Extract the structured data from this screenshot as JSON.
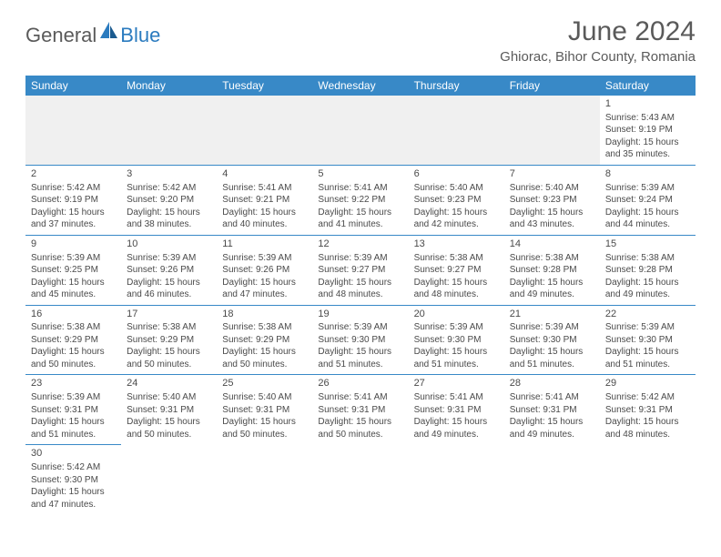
{
  "logo": {
    "general": "General",
    "blue": "Blue"
  },
  "title": "June 2024",
  "location": "Ghiorac, Bihor County, Romania",
  "dayHeaders": [
    "Sunday",
    "Monday",
    "Tuesday",
    "Wednesday",
    "Thursday",
    "Friday",
    "Saturday"
  ],
  "colors": {
    "headerBg": "#3889c7",
    "headerText": "#ffffff",
    "border": "#3889c7",
    "logoBlue": "#2b7bbf",
    "textGray": "#5a5a5a"
  },
  "grid": [
    [
      null,
      null,
      null,
      null,
      null,
      null,
      {
        "n": "1",
        "sr": "Sunrise: 5:43 AM",
        "ss": "Sunset: 9:19 PM",
        "d1": "Daylight: 15 hours",
        "d2": "and 35 minutes."
      }
    ],
    [
      {
        "n": "2",
        "sr": "Sunrise: 5:42 AM",
        "ss": "Sunset: 9:19 PM",
        "d1": "Daylight: 15 hours",
        "d2": "and 37 minutes."
      },
      {
        "n": "3",
        "sr": "Sunrise: 5:42 AM",
        "ss": "Sunset: 9:20 PM",
        "d1": "Daylight: 15 hours",
        "d2": "and 38 minutes."
      },
      {
        "n": "4",
        "sr": "Sunrise: 5:41 AM",
        "ss": "Sunset: 9:21 PM",
        "d1": "Daylight: 15 hours",
        "d2": "and 40 minutes."
      },
      {
        "n": "5",
        "sr": "Sunrise: 5:41 AM",
        "ss": "Sunset: 9:22 PM",
        "d1": "Daylight: 15 hours",
        "d2": "and 41 minutes."
      },
      {
        "n": "6",
        "sr": "Sunrise: 5:40 AM",
        "ss": "Sunset: 9:23 PM",
        "d1": "Daylight: 15 hours",
        "d2": "and 42 minutes."
      },
      {
        "n": "7",
        "sr": "Sunrise: 5:40 AM",
        "ss": "Sunset: 9:23 PM",
        "d1": "Daylight: 15 hours",
        "d2": "and 43 minutes."
      },
      {
        "n": "8",
        "sr": "Sunrise: 5:39 AM",
        "ss": "Sunset: 9:24 PM",
        "d1": "Daylight: 15 hours",
        "d2": "and 44 minutes."
      }
    ],
    [
      {
        "n": "9",
        "sr": "Sunrise: 5:39 AM",
        "ss": "Sunset: 9:25 PM",
        "d1": "Daylight: 15 hours",
        "d2": "and 45 minutes."
      },
      {
        "n": "10",
        "sr": "Sunrise: 5:39 AM",
        "ss": "Sunset: 9:26 PM",
        "d1": "Daylight: 15 hours",
        "d2": "and 46 minutes."
      },
      {
        "n": "11",
        "sr": "Sunrise: 5:39 AM",
        "ss": "Sunset: 9:26 PM",
        "d1": "Daylight: 15 hours",
        "d2": "and 47 minutes."
      },
      {
        "n": "12",
        "sr": "Sunrise: 5:39 AM",
        "ss": "Sunset: 9:27 PM",
        "d1": "Daylight: 15 hours",
        "d2": "and 48 minutes."
      },
      {
        "n": "13",
        "sr": "Sunrise: 5:38 AM",
        "ss": "Sunset: 9:27 PM",
        "d1": "Daylight: 15 hours",
        "d2": "and 48 minutes."
      },
      {
        "n": "14",
        "sr": "Sunrise: 5:38 AM",
        "ss": "Sunset: 9:28 PM",
        "d1": "Daylight: 15 hours",
        "d2": "and 49 minutes."
      },
      {
        "n": "15",
        "sr": "Sunrise: 5:38 AM",
        "ss": "Sunset: 9:28 PM",
        "d1": "Daylight: 15 hours",
        "d2": "and 49 minutes."
      }
    ],
    [
      {
        "n": "16",
        "sr": "Sunrise: 5:38 AM",
        "ss": "Sunset: 9:29 PM",
        "d1": "Daylight: 15 hours",
        "d2": "and 50 minutes."
      },
      {
        "n": "17",
        "sr": "Sunrise: 5:38 AM",
        "ss": "Sunset: 9:29 PM",
        "d1": "Daylight: 15 hours",
        "d2": "and 50 minutes."
      },
      {
        "n": "18",
        "sr": "Sunrise: 5:38 AM",
        "ss": "Sunset: 9:29 PM",
        "d1": "Daylight: 15 hours",
        "d2": "and 50 minutes."
      },
      {
        "n": "19",
        "sr": "Sunrise: 5:39 AM",
        "ss": "Sunset: 9:30 PM",
        "d1": "Daylight: 15 hours",
        "d2": "and 51 minutes."
      },
      {
        "n": "20",
        "sr": "Sunrise: 5:39 AM",
        "ss": "Sunset: 9:30 PM",
        "d1": "Daylight: 15 hours",
        "d2": "and 51 minutes."
      },
      {
        "n": "21",
        "sr": "Sunrise: 5:39 AM",
        "ss": "Sunset: 9:30 PM",
        "d1": "Daylight: 15 hours",
        "d2": "and 51 minutes."
      },
      {
        "n": "22",
        "sr": "Sunrise: 5:39 AM",
        "ss": "Sunset: 9:30 PM",
        "d1": "Daylight: 15 hours",
        "d2": "and 51 minutes."
      }
    ],
    [
      {
        "n": "23",
        "sr": "Sunrise: 5:39 AM",
        "ss": "Sunset: 9:31 PM",
        "d1": "Daylight: 15 hours",
        "d2": "and 51 minutes."
      },
      {
        "n": "24",
        "sr": "Sunrise: 5:40 AM",
        "ss": "Sunset: 9:31 PM",
        "d1": "Daylight: 15 hours",
        "d2": "and 50 minutes."
      },
      {
        "n": "25",
        "sr": "Sunrise: 5:40 AM",
        "ss": "Sunset: 9:31 PM",
        "d1": "Daylight: 15 hours",
        "d2": "and 50 minutes."
      },
      {
        "n": "26",
        "sr": "Sunrise: 5:41 AM",
        "ss": "Sunset: 9:31 PM",
        "d1": "Daylight: 15 hours",
        "d2": "and 50 minutes."
      },
      {
        "n": "27",
        "sr": "Sunrise: 5:41 AM",
        "ss": "Sunset: 9:31 PM",
        "d1": "Daylight: 15 hours",
        "d2": "and 49 minutes."
      },
      {
        "n": "28",
        "sr": "Sunrise: 5:41 AM",
        "ss": "Sunset: 9:31 PM",
        "d1": "Daylight: 15 hours",
        "d2": "and 49 minutes."
      },
      {
        "n": "29",
        "sr": "Sunrise: 5:42 AM",
        "ss": "Sunset: 9:31 PM",
        "d1": "Daylight: 15 hours",
        "d2": "and 48 minutes."
      }
    ],
    [
      {
        "n": "30",
        "sr": "Sunrise: 5:42 AM",
        "ss": "Sunset: 9:30 PM",
        "d1": "Daylight: 15 hours",
        "d2": "and 47 minutes."
      },
      null,
      null,
      null,
      null,
      null,
      null
    ]
  ]
}
